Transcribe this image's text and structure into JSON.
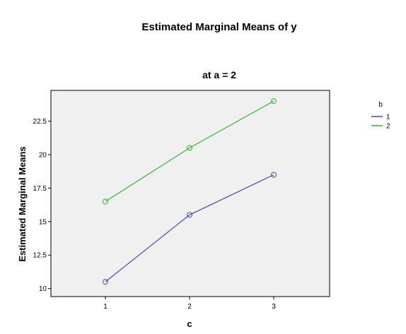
{
  "chart_data": {
    "type": "line",
    "title": "Estimated Marginal Means of y",
    "subtitle": "at a = 2",
    "xlabel": "c",
    "ylabel": "Estimated Marginal Means",
    "categories": [
      "1",
      "2",
      "3"
    ],
    "y_ticks": [
      "10",
      "12.5",
      "15",
      "17.5",
      "20",
      "22.5"
    ],
    "ylim": [
      9.4,
      24.8
    ],
    "grid": false,
    "legend": {
      "title": "b",
      "placement": "right"
    },
    "plot_background": "#f0f0f0",
    "series": [
      {
        "name": "1",
        "color": "#3a52a6",
        "values": [
          10.5,
          15.5,
          18.5
        ]
      },
      {
        "name": "2",
        "color": "#2eb82e",
        "values": [
          16.5,
          20.5,
          24.0
        ]
      }
    ]
  }
}
